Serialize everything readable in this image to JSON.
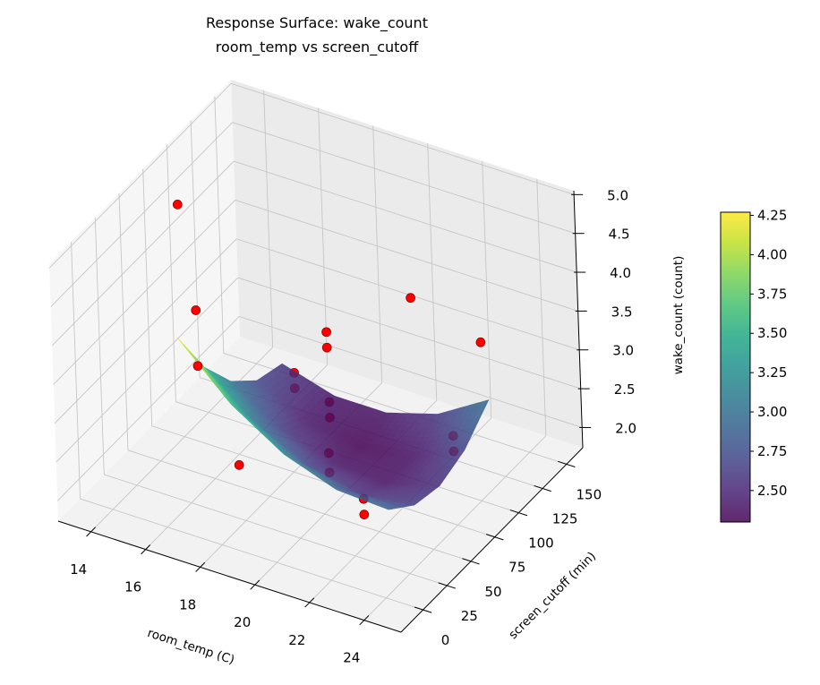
{
  "chart_data": {
    "type": "surface3d",
    "title": "Response Surface: wake_count",
    "subtitle": "room_temp vs screen_cutoff",
    "xlabel": "room_temp (C)",
    "ylabel": "screen_cutoff (min)",
    "zlabel": "wake_count (count)",
    "xlim": [
      12.8,
      25.35
    ],
    "ylim": [
      -23,
      167
    ],
    "zlim": [
      1.74,
      5.05
    ],
    "grid": true,
    "xticks": [
      14,
      16,
      18,
      20,
      22,
      24
    ],
    "xtick_labels": [
      "14",
      "16",
      "18",
      "20",
      "22",
      "24"
    ],
    "yticks": [
      0,
      25,
      50,
      75,
      100,
      125,
      150
    ],
    "ytick_labels": [
      "0",
      "25",
      "50",
      "75",
      "100",
      "125",
      "150"
    ],
    "zticks": [
      2.0,
      2.5,
      3.0,
      3.5,
      4.0,
      4.5,
      5.0
    ],
    "ztick_labels": [
      "2.0",
      "2.5",
      "3.0",
      "3.5",
      "4.0",
      "4.5",
      "5.0"
    ],
    "surface": {
      "colormap": "viridis",
      "alpha": 0.85,
      "x": [
        16.6,
        18.5,
        20.4,
        22.3,
        24.2
      ],
      "y": [
        0,
        26.25,
        52.5,
        78.75,
        105
      ],
      "z": [
        [
          4.25,
          3.61,
          3.18,
          2.94,
          2.9
        ],
        [
          3.54,
          3.01,
          2.68,
          2.55,
          2.63
        ],
        [
          3.03,
          2.61,
          2.39,
          2.37,
          2.55
        ],
        [
          2.71,
          2.4,
          2.29,
          2.38,
          2.68
        ],
        [
          2.6,
          2.4,
          2.4,
          2.6,
          3.0
        ]
      ]
    },
    "points": {
      "color": "#ff0000",
      "edge_color": "#7a0000",
      "data": [
        [
          14.4,
          65,
          4.9
        ],
        [
          15.6,
          47,
          3.9
        ],
        [
          16.3,
          28,
          3.5
        ],
        [
          18.4,
          9,
          2.7
        ],
        [
          18.5,
          65,
          3.2
        ],
        [
          18.5,
          65,
          3.0
        ],
        [
          19.6,
          69,
          3.8
        ],
        [
          19.6,
          69,
          3.6
        ],
        [
          19.4,
          75,
          2.8
        ],
        [
          19.4,
          75,
          2.6
        ],
        [
          19.9,
          59,
          2.4
        ],
        [
          19.9,
          59,
          2.15
        ],
        [
          23.0,
          8,
          2.8
        ],
        [
          23.0,
          8,
          2.6
        ],
        [
          22.1,
          87,
          4.3
        ],
        [
          24.6,
          88,
          4.0
        ],
        [
          24.2,
          68,
          3.0
        ],
        [
          24.2,
          68,
          2.8
        ]
      ]
    },
    "colorbar": {
      "range": [
        2.3,
        4.27
      ],
      "ticks": [
        2.5,
        2.75,
        3.0,
        3.25,
        3.5,
        3.75,
        4.0,
        4.25
      ],
      "tick_labels": [
        "2.50",
        "2.75",
        "3.00",
        "3.25",
        "3.50",
        "3.75",
        "4.00",
        "4.25"
      ]
    }
  }
}
